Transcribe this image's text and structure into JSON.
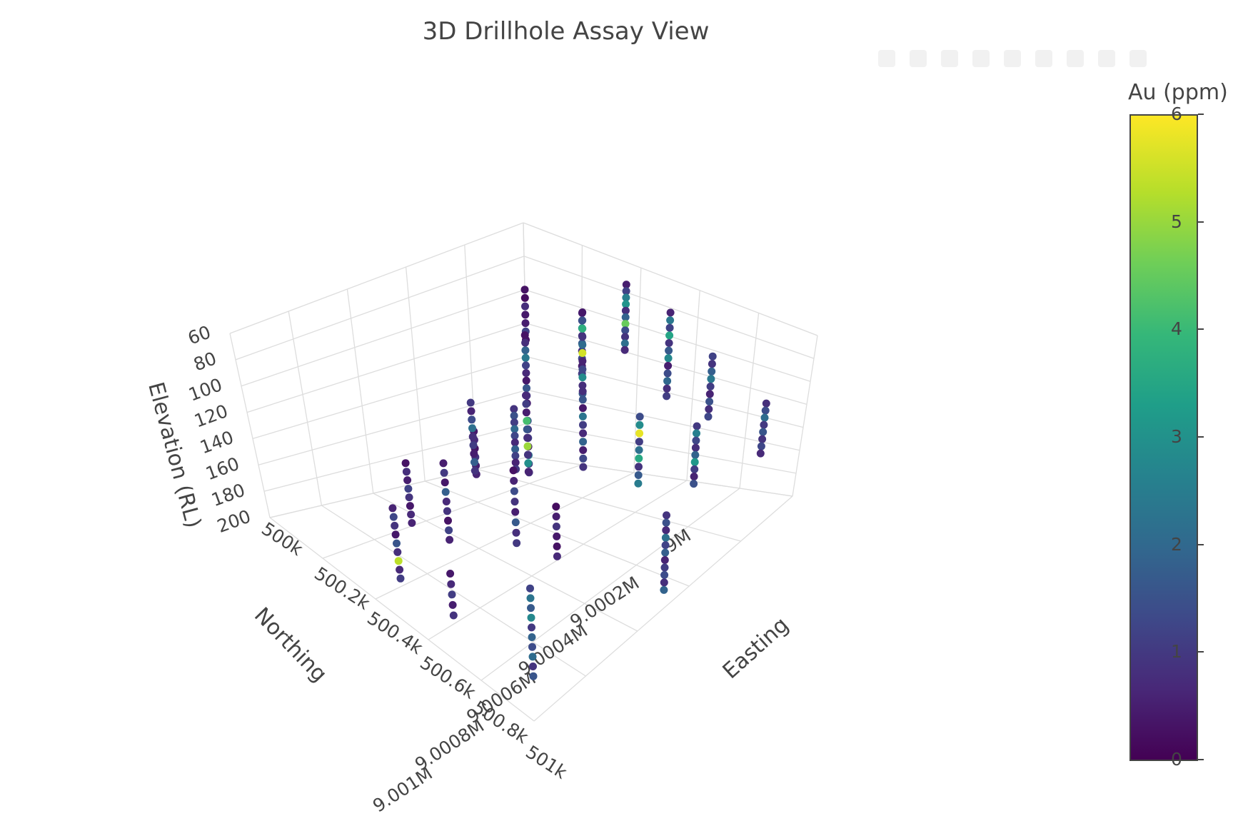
{
  "chart_data": {
    "type": "scatter3d",
    "title": "3D Drillhole Assay View",
    "x_axis": {
      "label": "Easting",
      "range": [
        500000,
        501000
      ],
      "ticks": [
        "500k",
        "500.2k",
        "500.4k",
        "500.6k",
        "500.8k",
        "501k"
      ]
    },
    "y_axis": {
      "label": "Northing",
      "range": [
        9000000,
        9001000
      ],
      "ticks": [
        "9M",
        "9.0002M",
        "9.0004M",
        "9.0006M",
        "9.0008M",
        "9.001M"
      ]
    },
    "z_axis": {
      "label": "Elevation (RL)",
      "range": [
        200,
        60
      ],
      "ticks": [
        "60",
        "80",
        "100",
        "120",
        "140",
        "160",
        "180",
        "200"
      ]
    },
    "colorbar": {
      "title": "Au (ppm)",
      "range": [
        0,
        6
      ],
      "ticks": [
        "0",
        "1",
        "2",
        "3",
        "4",
        "5",
        "6"
      ],
      "colorscale": "viridis"
    },
    "grid": true,
    "legend": "none",
    "drillholes": [
      {
        "easting": 500000,
        "northing": 9000000,
        "top_rl": 100,
        "bottom_rl": 130,
        "au_ppm": [
          0.3,
          0.2,
          0.8,
          0.4,
          0.5,
          1.2,
          0.3
        ]
      },
      {
        "easting": 500100,
        "northing": 9000150,
        "top_rl": 160,
        "bottom_rl": 198,
        "au_ppm": [
          0.9,
          1.5,
          1.1,
          2.0,
          1.3,
          0.7,
          1.8,
          1.2,
          0.6,
          1.0
        ]
      },
      {
        "easting": 500150,
        "northing": 9000150,
        "top_rl": 165,
        "bottom_rl": 198,
        "au_ppm": [
          1.6,
          0.8,
          1.2,
          0.5,
          2.4,
          1.1,
          0.9
        ]
      },
      {
        "easting": 500150,
        "northing": 9000350,
        "top_rl": 160,
        "bottom_rl": 188,
        "au_ppm": [
          0.4,
          0.7,
          0.3,
          0.9,
          0.5,
          0.6
        ]
      },
      {
        "easting": 500300,
        "northing": 9000100,
        "top_rl": 90,
        "bottom_rl": 130,
        "au_ppm": [
          0.6,
          1.3,
          2.8,
          0.9,
          1.7,
          0.8,
          1.4,
          0.5,
          1.1
        ]
      },
      {
        "easting": 500300,
        "northing": 9000300,
        "top_rl": 90,
        "bottom_rl": 135,
        "au_ppm": [
          0.3,
          0.8,
          1.9,
          2.4,
          1.2,
          0.7,
          0.4,
          1.6,
          0.9,
          0.5
        ]
      },
      {
        "easting": 500300,
        "northing": 9000500,
        "top_rl": 120,
        "bottom_rl": 165,
        "au_ppm": [
          1.0,
          0.6,
          1.4,
          2.2,
          0.8,
          1.1,
          0.5,
          1.8,
          0.9
        ]
      },
      {
        "easting": 500450,
        "northing": 9000100,
        "top_rl": 60,
        "bottom_rl": 105,
        "au_ppm": [
          0.5,
          1.2,
          2.6,
          3.1,
          0.8,
          1.9,
          4.6,
          1.4,
          0.9,
          2.2,
          0.7
        ]
      },
      {
        "easting": 500500,
        "northing": 9000300,
        "top_rl": 60,
        "bottom_rl": 115,
        "au_ppm": [
          0.4,
          1.5,
          3.8,
          0.9,
          2.1,
          5.6,
          0.6,
          1.3,
          2.9,
          0.8,
          1.7
        ]
      },
      {
        "easting": 500500,
        "northing": 9000500,
        "top_rl": 100,
        "bottom_rl": 150,
        "au_ppm": [
          0.7,
          1.1,
          0.5,
          4.2,
          1.6,
          0.8,
          5.1,
          0.9,
          3.0,
          0.6
        ]
      },
      {
        "easting": 500500,
        "northing": 9000800,
        "top_rl": 120,
        "bottom_rl": 168,
        "au_ppm": [
          0.5,
          1.0,
          0.4,
          1.8,
          0.7,
          0.9,
          0.3,
          1.2,
          0.6
        ]
      },
      {
        "easting": 500650,
        "northing": 9000150,
        "top_rl": 60,
        "bottom_rl": 120,
        "au_ppm": [
          0.6,
          2.4,
          1.2,
          3.5,
          0.9,
          1.7,
          2.8,
          0.5,
          1.4,
          2.0,
          0.8,
          1.1
        ]
      },
      {
        "easting": 500650,
        "northing": 9000450,
        "top_rl": 90,
        "bottom_rl": 140,
        "au_ppm": [
          0.8,
          1.6,
          0.4,
          2.3,
          1.1,
          0.7,
          1.9,
          0.5,
          1.3,
          0.9
        ]
      },
      {
        "easting": 500650,
        "northing": 9000700,
        "top_rl": 120,
        "bottom_rl": 165,
        "au_ppm": [
          0.3,
          0.6,
          1.4,
          0.9,
          0.5,
          1.7,
          0.8,
          1.0
        ]
      },
      {
        "easting": 500800,
        "northing": 9000150,
        "top_rl": 80,
        "bottom_rl": 125,
        "au_ppm": [
          1.2,
          0.9,
          1.8,
          2.4,
          1.1,
          0.6,
          1.5,
          0.8,
          1.3
        ]
      },
      {
        "easting": 500800,
        "northing": 9000400,
        "top_rl": 100,
        "bottom_rl": 145,
        "au_ppm": [
          1.4,
          2.9,
          5.8,
          1.1,
          2.2,
          3.6,
          0.9,
          1.7,
          2.5
        ]
      },
      {
        "easting": 500800,
        "northing": 9000700,
        "top_rl": 130,
        "bottom_rl": 160,
        "au_ppm": [
          0.2,
          0.5,
          0.9,
          0.4,
          0.3,
          0.7
        ]
      },
      {
        "easting": 500950,
        "northing": 9000100,
        "top_rl": 110,
        "bottom_rl": 150,
        "au_ppm": [
          0.8,
          1.4,
          2.1,
          1.0,
          1.6,
          0.9,
          1.3,
          0.7
        ]
      },
      {
        "easting": 500950,
        "northing": 9000350,
        "top_rl": 100,
        "bottom_rl": 140,
        "au_ppm": [
          1.0,
          2.6,
          1.3,
          0.8,
          1.9,
          3.2,
          1.1,
          0.6,
          1.5
        ]
      },
      {
        "easting": 501000,
        "northing": 9000500,
        "top_rl": 140,
        "bottom_rl": 188,
        "au_ppm": [
          0.9,
          1.5,
          0.7,
          2.2,
          1.2,
          1.8,
          0.6,
          1.1,
          1.4,
          0.8,
          1.9
        ]
      },
      {
        "easting": 500250,
        "northing": 9000700,
        "top_rl": 150,
        "bottom_rl": 190,
        "au_ppm": [
          0.3,
          0.8,
          0.5,
          1.2,
          0.9,
          0.4,
          0.7,
          0.6
        ]
      },
      {
        "easting": 500400,
        "northing": 9000900,
        "top_rl": 150,
        "bottom_rl": 195,
        "au_ppm": [
          0.6,
          1.3,
          0.9,
          0.4,
          1.6,
          0.8,
          5.4,
          0.7,
          1.1
        ]
      },
      {
        "easting": 500900,
        "northing": 9000900,
        "top_rl": 150,
        "bottom_rl": 198,
        "au_ppm": [
          1.2,
          2.3,
          1.7,
          2.8,
          1.0,
          1.9,
          1.4,
          2.1,
          0.9,
          1.6
        ]
      },
      {
        "easting": 500600,
        "northing": 9000900,
        "top_rl": 170,
        "bottom_rl": 195,
        "au_ppm": [
          0.4,
          0.7,
          1.1,
          0.5,
          0.9
        ]
      }
    ]
  }
}
